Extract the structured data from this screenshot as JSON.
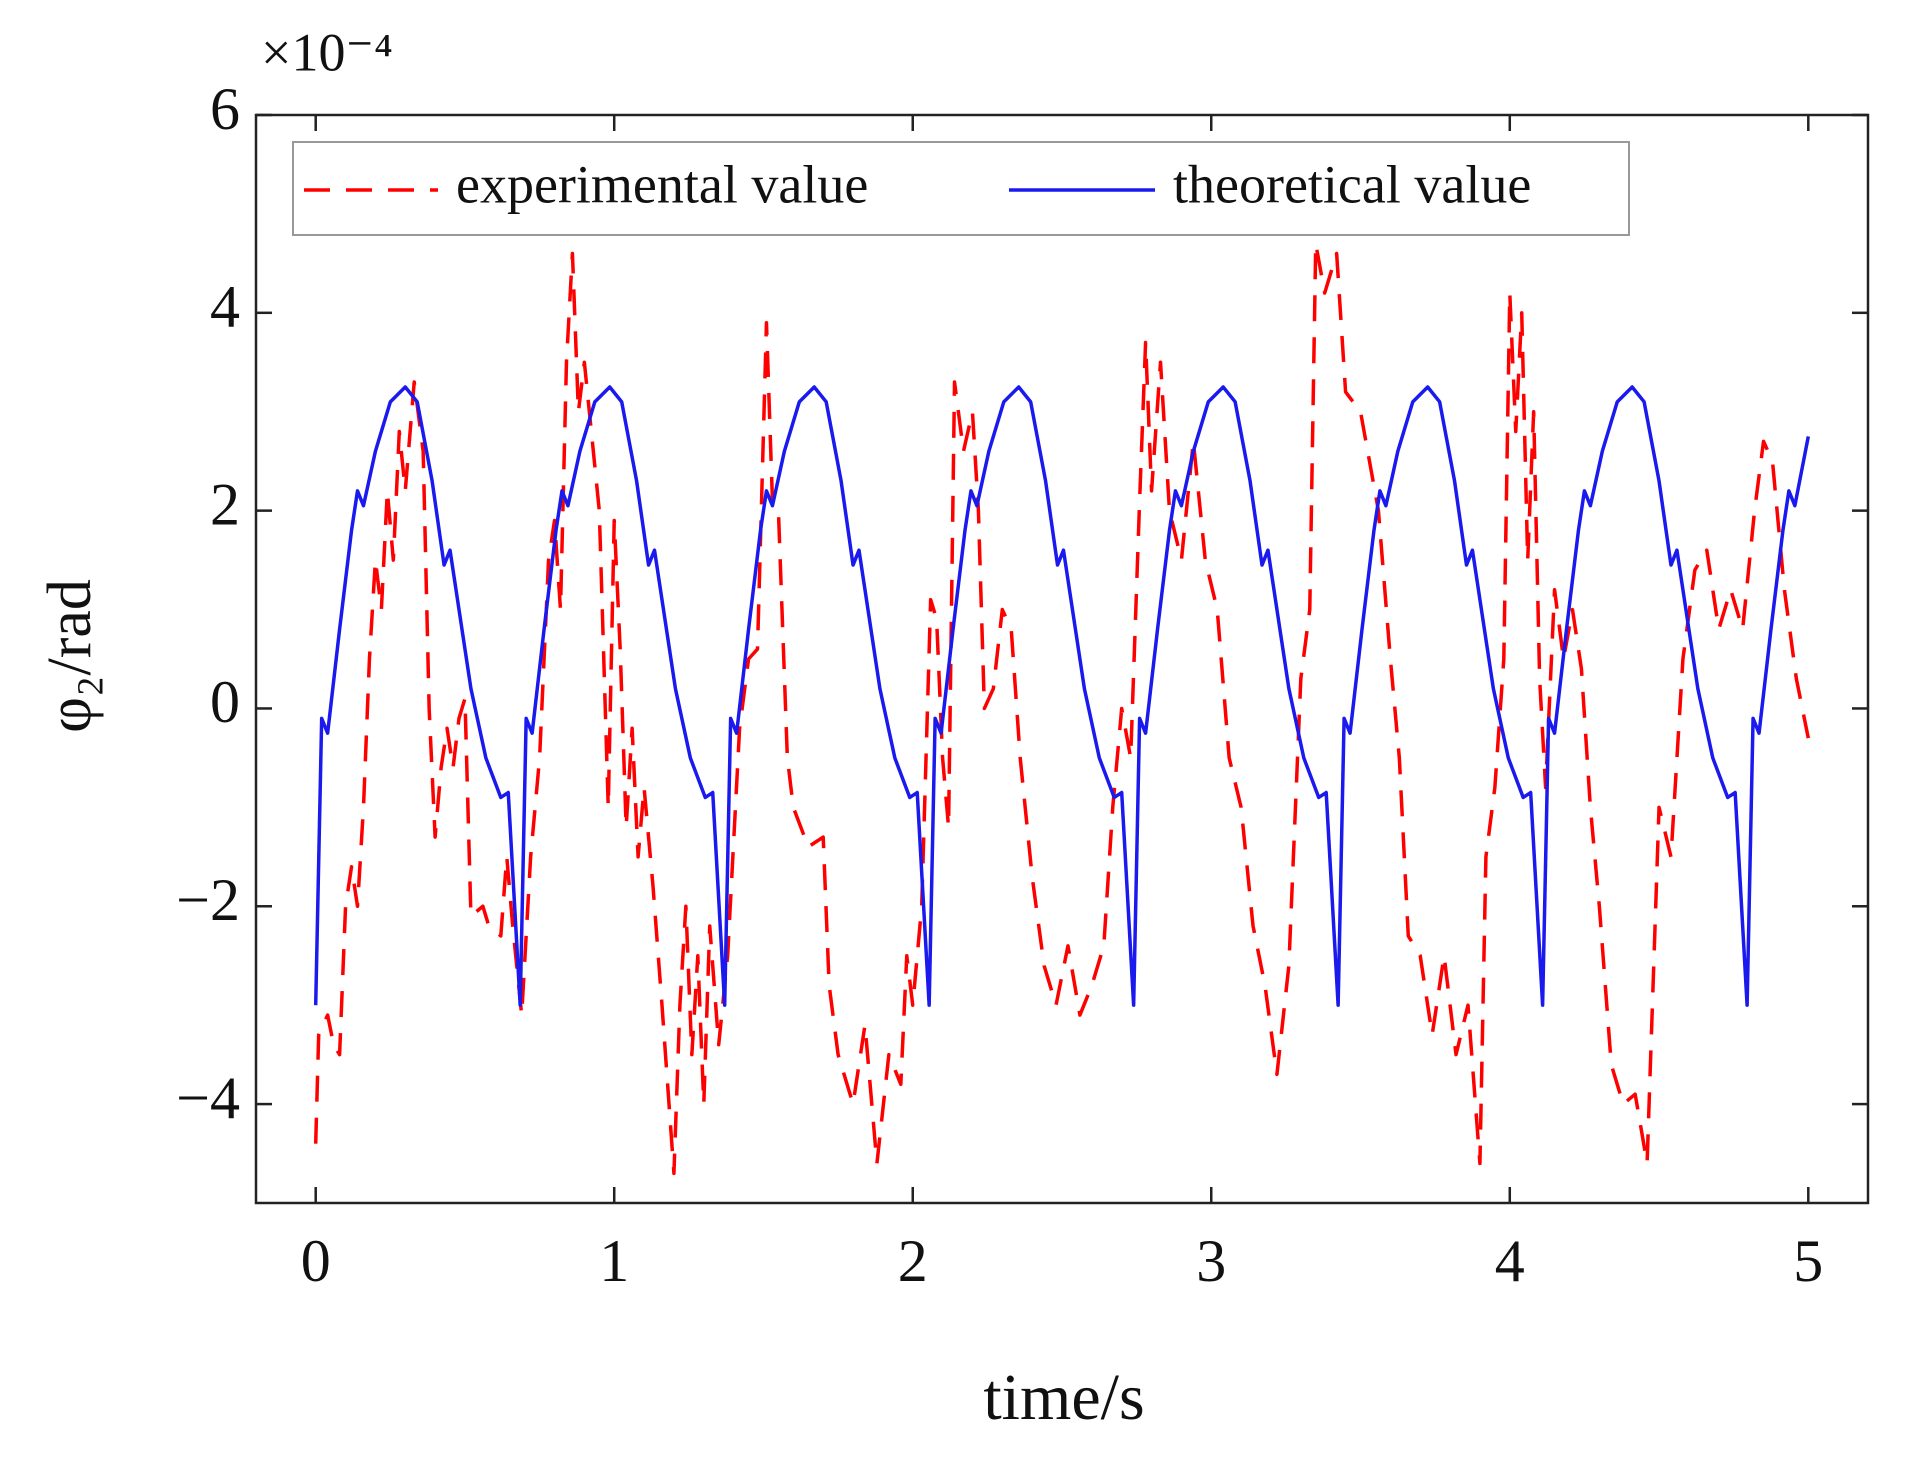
{
  "chart_data": {
    "type": "line",
    "multiplier": "×10⁻⁴",
    "xlabel": "time/s",
    "ylabel": "φ₂/rad",
    "xlim": [
      -0.2,
      5.2
    ],
    "xticks": [
      0,
      1,
      2,
      3,
      4,
      5
    ],
    "ylim": [
      -5,
      6
    ],
    "yticks": [
      {
        "value": -4,
        "label": "−4"
      },
      {
        "value": -2,
        "label": "−2"
      },
      0,
      2,
      4,
      6
    ],
    "series": [
      {
        "name": "experimental value",
        "color": "#ff0000",
        "linestyle": "dashed",
        "x": [
          0.0,
          0.01,
          0.04,
          0.06,
          0.08,
          0.1,
          0.12,
          0.14,
          0.16,
          0.18,
          0.2,
          0.22,
          0.24,
          0.26,
          0.28,
          0.3,
          0.33,
          0.36,
          0.38,
          0.4,
          0.42,
          0.44,
          0.46,
          0.48,
          0.5,
          0.52,
          0.56,
          0.58,
          0.62,
          0.64,
          0.66,
          0.69,
          0.72,
          0.75,
          0.78,
          0.8,
          0.82,
          0.84,
          0.86,
          0.88,
          0.9,
          0.92,
          0.95,
          0.98,
          1.0,
          1.02,
          1.04,
          1.06,
          1.08,
          1.1,
          1.13,
          1.16,
          1.2,
          1.22,
          1.24,
          1.26,
          1.28,
          1.3,
          1.32,
          1.35,
          1.38,
          1.42,
          1.45,
          1.48,
          1.51,
          1.53,
          1.55,
          1.58,
          1.6,
          1.65,
          1.7,
          1.72,
          1.75,
          1.8,
          1.84,
          1.88,
          1.92,
          1.96,
          1.98,
          2.0,
          2.03,
          2.06,
          2.08,
          2.1,
          2.12,
          2.14,
          2.17,
          2.2,
          2.22,
          2.24,
          2.27,
          2.3,
          2.33,
          2.36,
          2.4,
          2.44,
          2.48,
          2.52,
          2.56,
          2.6,
          2.64,
          2.67,
          2.7,
          2.73,
          2.76,
          2.78,
          2.8,
          2.83,
          2.86,
          2.9,
          2.94,
          2.98,
          3.02,
          3.06,
          3.1,
          3.14,
          3.18,
          3.22,
          3.26,
          3.3,
          3.33,
          3.35,
          3.38,
          3.42,
          3.45,
          3.5,
          3.53,
          3.56,
          3.6,
          3.63,
          3.66,
          3.7,
          3.74,
          3.78,
          3.82,
          3.86,
          3.9,
          3.92,
          3.95,
          3.98,
          4.0,
          4.02,
          4.04,
          4.06,
          4.08,
          4.1,
          4.12,
          4.15,
          4.18,
          4.21,
          4.24,
          4.27,
          4.3,
          4.34,
          4.38,
          4.42,
          4.46,
          4.5,
          4.54,
          4.58,
          4.62,
          4.66,
          4.7,
          4.74,
          4.78,
          4.82,
          4.85,
          4.88,
          4.92,
          4.96,
          5.0
        ],
        "values": [
          -4.4,
          -3.3,
          -3.1,
          -3.4,
          -3.5,
          -2.0,
          -1.6,
          -2.0,
          -1.0,
          0.5,
          1.5,
          1.0,
          2.2,
          1.5,
          2.8,
          2.2,
          3.3,
          2.6,
          0.0,
          -1.3,
          -0.6,
          -0.2,
          -0.6,
          -0.1,
          0.1,
          -2.1,
          -2.0,
          -2.2,
          -2.3,
          -1.5,
          -2.2,
          -3.1,
          -1.5,
          -0.5,
          1.5,
          1.9,
          1.0,
          3.5,
          4.6,
          3.0,
          3.5,
          2.9,
          2.0,
          -1.0,
          1.9,
          0.6,
          -1.2,
          -0.2,
          -1.5,
          -0.8,
          -1.8,
          -3.0,
          -4.7,
          -3.0,
          -2.0,
          -3.5,
          -2.5,
          -4.0,
          -2.2,
          -3.4,
          -2.5,
          -0.2,
          0.5,
          0.6,
          3.9,
          2.1,
          2.0,
          -0.5,
          -1.0,
          -1.4,
          -1.3,
          -2.8,
          -3.5,
          -4.0,
          -3.2,
          -4.6,
          -3.5,
          -3.8,
          -2.5,
          -3.0,
          -2.0,
          1.1,
          0.9,
          -0.5,
          -1.2,
          3.3,
          2.6,
          3.0,
          2.0,
          0.0,
          0.2,
          1.0,
          0.8,
          -0.5,
          -1.7,
          -2.6,
          -3.0,
          -2.4,
          -3.1,
          -2.8,
          -2.4,
          -1.0,
          0.0,
          -0.5,
          2.1,
          3.7,
          2.2,
          3.5,
          2.0,
          1.5,
          2.7,
          1.5,
          1.0,
          -0.5,
          -1.0,
          -2.2,
          -2.8,
          -3.7,
          -2.6,
          0.3,
          1.0,
          4.7,
          4.2,
          4.6,
          3.2,
          3.0,
          2.5,
          2.0,
          0.5,
          -0.5,
          -2.3,
          -2.5,
          -3.3,
          -2.5,
          -3.5,
          -3.0,
          -4.6,
          -1.5,
          -0.8,
          0.5,
          4.2,
          2.8,
          4.0,
          1.5,
          3.0,
          0.3,
          -0.8,
          1.2,
          0.5,
          1.0,
          0.4,
          -1.0,
          -2.0,
          -3.6,
          -4.0,
          -3.9,
          -4.6,
          -1.0,
          -1.5,
          0.5,
          1.4,
          1.6,
          0.8,
          1.2,
          0.8,
          2.0,
          2.7,
          2.5,
          1.2,
          0.3,
          -0.3
        ]
      },
      {
        "name": "theoretical value",
        "color": "#1a1aee",
        "linestyle": "solid",
        "x": [
          0,
          0.02,
          0.04,
          0.08,
          0.12,
          0.14,
          0.16,
          0.2,
          0.25,
          0.3,
          0.34,
          0.39,
          0.43,
          0.45,
          0.47,
          0.52,
          0.57,
          0.62,
          0.645,
          0.685,
          0.705,
          0.725,
          0.765,
          0.805,
          0.825,
          0.845,
          0.885,
          0.935,
          0.985,
          1.025,
          1.075,
          1.115,
          1.135,
          1.155,
          1.205,
          1.255,
          1.305,
          1.33,
          1.37,
          1.39,
          1.41,
          1.45,
          1.49,
          1.51,
          1.53,
          1.57,
          1.62,
          1.67,
          1.71,
          1.76,
          1.8,
          1.82,
          1.84,
          1.89,
          1.94,
          1.99,
          2.015,
          2.055,
          2.075,
          2.095,
          2.135,
          2.175,
          2.195,
          2.215,
          2.255,
          2.305,
          2.355,
          2.395,
          2.445,
          2.485,
          2.505,
          2.525,
          2.575,
          2.625,
          2.675,
          2.7,
          2.74,
          2.76,
          2.78,
          2.82,
          2.86,
          2.88,
          2.9,
          2.94,
          2.99,
          3.04,
          3.08,
          3.13,
          3.17,
          3.19,
          3.21,
          3.26,
          3.31,
          3.36,
          3.385,
          3.425,
          3.445,
          3.465,
          3.505,
          3.545,
          3.565,
          3.585,
          3.625,
          3.675,
          3.725,
          3.765,
          3.815,
          3.855,
          3.875,
          3.895,
          3.945,
          3.995,
          4.045,
          4.07,
          4.11,
          4.13,
          4.15,
          4.19,
          4.23,
          4.25,
          4.27,
          4.31,
          4.36,
          4.41,
          4.45,
          4.5,
          4.54,
          4.56,
          4.58,
          4.63,
          4.68,
          4.73,
          4.755,
          4.795,
          4.815,
          4.835,
          4.875,
          4.915,
          4.935,
          4.955,
          5.0
        ],
        "values": [
          -3,
          -0.1,
          -0.25,
          0.8,
          1.8,
          2.2,
          2.05,
          2.6,
          3.1,
          3.25,
          3.1,
          2.3,
          1.45,
          1.6,
          1.2,
          0.2,
          -0.5,
          -0.9,
          -0.85,
          -3,
          -0.1,
          -0.25,
          0.8,
          1.8,
          2.2,
          2.05,
          2.6,
          3.1,
          3.25,
          3.1,
          2.3,
          1.45,
          1.6,
          1.2,
          0.2,
          -0.5,
          -0.9,
          -0.85,
          -3,
          -0.1,
          -0.25,
          0.8,
          1.8,
          2.2,
          2.05,
          2.6,
          3.1,
          3.25,
          3.1,
          2.3,
          1.45,
          1.6,
          1.2,
          0.2,
          -0.5,
          -0.9,
          -0.85,
          -3,
          -0.1,
          -0.25,
          0.8,
          1.8,
          2.2,
          2.05,
          2.6,
          3.1,
          3.25,
          3.1,
          2.3,
          1.45,
          1.6,
          1.2,
          0.2,
          -0.5,
          -0.9,
          -0.85,
          -3,
          -0.1,
          -0.25,
          0.8,
          1.8,
          2.2,
          2.05,
          2.6,
          3.1,
          3.25,
          3.1,
          2.3,
          1.45,
          1.6,
          1.2,
          0.2,
          -0.5,
          -0.9,
          -0.85,
          -3,
          -0.1,
          -0.25,
          0.8,
          1.8,
          2.2,
          2.05,
          2.6,
          3.1,
          3.25,
          3.1,
          2.3,
          1.45,
          1.6,
          1.2,
          0.2,
          -0.5,
          -0.9,
          -0.85,
          -3,
          -0.1,
          -0.25,
          0.8,
          1.8,
          2.2,
          2.05,
          2.6,
          3.1,
          3.25,
          3.1,
          2.3,
          1.45,
          1.6,
          1.2,
          0.2,
          -0.5,
          -0.9,
          -0.85,
          -3,
          -0.1,
          -0.25,
          0.8,
          1.8,
          2.2,
          2.05,
          2.75
        ]
      }
    ]
  }
}
